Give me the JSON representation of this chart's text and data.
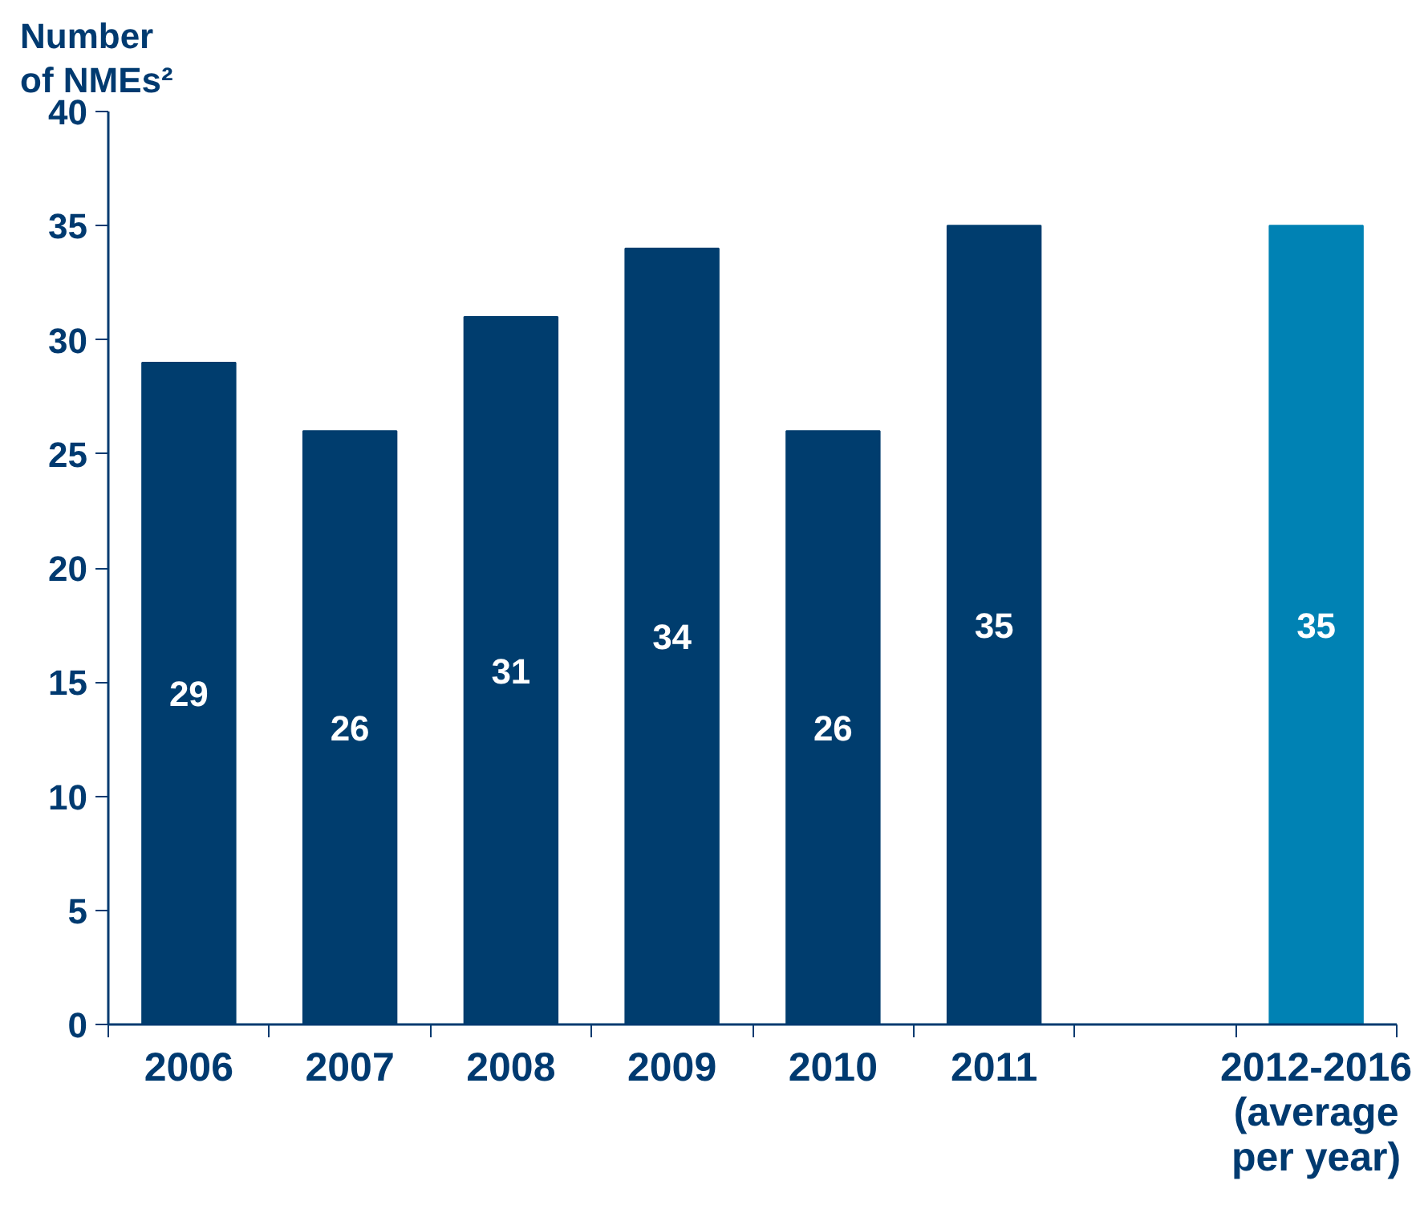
{
  "chart_data": {
    "type": "bar",
    "ylabel": "Number\nof NMEs²",
    "categories": [
      "2006",
      "2007",
      "2008",
      "2009",
      "2010",
      "2011",
      null,
      "2012-2016\n(average\nper year)"
    ],
    "values": [
      29,
      26,
      31,
      34,
      26,
      35,
      null,
      35
    ],
    "colors": [
      "#003d6e",
      "#003d6e",
      "#003d6e",
      "#003d6e",
      "#003d6e",
      "#003d6e",
      null,
      "#0082b4"
    ],
    "ylim": [
      0,
      40
    ],
    "yticks": [
      0,
      5,
      10,
      15,
      20,
      25,
      30,
      35,
      40
    ],
    "data_labels": true,
    "grid": false
  }
}
